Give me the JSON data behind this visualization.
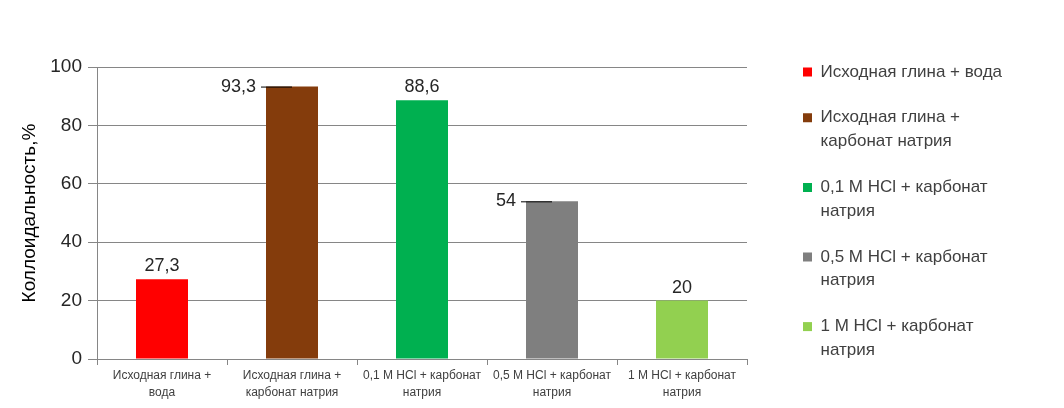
{
  "chart_data": {
    "type": "bar",
    "ylabel": "Коллоидальность,%",
    "categories": [
      "Исходная глина + вода",
      "Исходная глина + карбонат натрия",
      "0,1 М HCl + карбонат натрия",
      "0,5 М HCl + карбонат натрия",
      "1 М HCl + карбонат натрия"
    ],
    "series": [
      {
        "name": "Исходная глина + вода",
        "color": "#ff0000",
        "values": [
          27.3,
          null,
          null,
          null,
          null
        ],
        "value_labels": [
          "27,3",
          null,
          null,
          null,
          null
        ]
      },
      {
        "name": "Исходная глина + карбонат натрия",
        "color": "#843c0c",
        "values": [
          null,
          93.3,
          null,
          null,
          null
        ],
        "value_labels": [
          null,
          "93,3",
          null,
          null,
          null
        ]
      },
      {
        "name": "0,1 М HCl + карбонат натрия",
        "color": "#00b050",
        "values": [
          null,
          null,
          88.6,
          null,
          null
        ],
        "value_labels": [
          null,
          null,
          "88,6",
          null,
          null
        ]
      },
      {
        "name": "0,5 М HCl + карбонат натрия",
        "color": "#7f7f7f",
        "values": [
          null,
          null,
          null,
          54,
          null
        ],
        "value_labels": [
          null,
          null,
          null,
          "54",
          null
        ]
      },
      {
        "name": "1 М HCl + карбонат натрия",
        "color": "#92d050",
        "values": [
          null,
          null,
          null,
          null,
          20
        ],
        "value_labels": [
          null,
          null,
          null,
          null,
          "20"
        ]
      }
    ],
    "ylim": [
      0,
      100
    ],
    "yticks": [
      0,
      20,
      40,
      60,
      80,
      100
    ],
    "grid": "y",
    "legend": "right"
  }
}
